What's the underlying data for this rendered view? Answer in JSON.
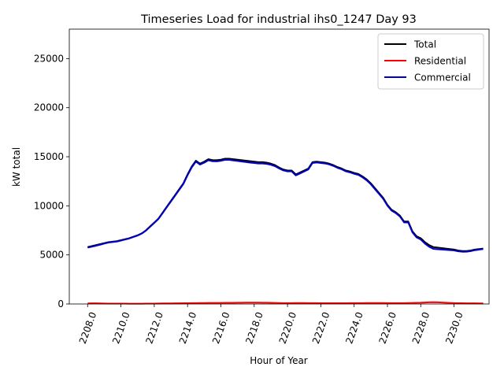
{
  "chart_data": {
    "type": "line",
    "title": "Timeseries Load for industrial ihs0_1247  Day 93",
    "xlabel": "Hour of Year",
    "ylabel": "kW total",
    "xlim": [
      2206.9,
      2232.1
    ],
    "ylim": [
      0,
      28000
    ],
    "xticks": [
      2208,
      2210,
      2212,
      2214,
      2216,
      2218,
      2220,
      2222,
      2224,
      2226,
      2228,
      2230
    ],
    "xtick_labels": [
      "2208.0",
      "2210.0",
      "2212.0",
      "2214.0",
      "2216.0",
      "2218.0",
      "2220.0",
      "2222.0",
      "2224.0",
      "2226.0",
      "2228.0",
      "2230.0"
    ],
    "yticks": [
      0,
      5000,
      10000,
      15000,
      20000,
      25000
    ],
    "ytick_labels": [
      "0",
      "5000",
      "10000",
      "15000",
      "20000",
      "25000"
    ],
    "grid": false,
    "legend_position": "top-right",
    "x": [
      2208.0,
      2208.25,
      2208.5,
      2208.75,
      2209.0,
      2209.25,
      2209.5,
      2209.75,
      2210.0,
      2210.25,
      2210.5,
      2210.75,
      2211.0,
      2211.25,
      2211.5,
      2211.75,
      2212.0,
      2212.25,
      2212.5,
      2212.75,
      2213.0,
      2213.25,
      2213.5,
      2213.75,
      2214.0,
      2214.25,
      2214.5,
      2214.75,
      2215.0,
      2215.25,
      2215.5,
      2215.75,
      2216.0,
      2216.25,
      2216.5,
      2216.75,
      2217.0,
      2217.25,
      2217.5,
      2217.75,
      2218.0,
      2218.25,
      2218.5,
      2218.75,
      2219.0,
      2219.25,
      2219.5,
      2219.75,
      2220.0,
      2220.25,
      2220.5,
      2220.75,
      2221.0,
      2221.25,
      2221.5,
      2221.75,
      2222.0,
      2222.25,
      2222.5,
      2222.75,
      2223.0,
      2223.25,
      2223.5,
      2223.75,
      2224.0,
      2224.25,
      2224.5,
      2224.75,
      2225.0,
      2225.25,
      2225.5,
      2225.75,
      2226.0,
      2226.25,
      2226.5,
      2226.75,
      2227.0,
      2227.25,
      2227.5,
      2227.75,
      2228.0,
      2228.25,
      2228.5,
      2228.75,
      2229.0,
      2229.25,
      2229.5,
      2229.75,
      2230.0,
      2230.25,
      2230.5,
      2230.75,
      2231.0,
      2231.25,
      2231.5,
      2231.75
    ],
    "series": [
      {
        "name": "Total",
        "color": "#000000",
        "values": [
          5800,
          5900,
          6000,
          6100,
          6200,
          6300,
          6350,
          6400,
          6500,
          6600,
          6700,
          6850,
          7000,
          7200,
          7500,
          7900,
          8300,
          8700,
          9300,
          9900,
          10500,
          11100,
          11700,
          12300,
          13200,
          14000,
          14600,
          14300,
          14500,
          14750,
          14650,
          14650,
          14700,
          14800,
          14800,
          14750,
          14700,
          14650,
          14600,
          14550,
          14500,
          14450,
          14450,
          14400,
          14300,
          14150,
          13900,
          13700,
          13600,
          13600,
          13200,
          13400,
          13600,
          13800,
          14450,
          14500,
          14450,
          14400,
          14300,
          14150,
          13950,
          13800,
          13600,
          13500,
          13350,
          13250,
          13000,
          12700,
          12300,
          11800,
          11300,
          10800,
          10100,
          9600,
          9350,
          9000,
          8400,
          8400,
          7400,
          6900,
          6700,
          6300,
          6000,
          5800,
          5750,
          5700,
          5650,
          5600,
          5550,
          5450,
          5400,
          5400,
          5450,
          5550,
          5600,
          5650
        ]
      },
      {
        "name": "Residential",
        "color": "#ff0000",
        "values": [
          60,
          70,
          70,
          60,
          50,
          45,
          40,
          40,
          40,
          35,
          30,
          30,
          30,
          30,
          35,
          40,
          45,
          50,
          55,
          60,
          65,
          70,
          75,
          80,
          85,
          90,
          95,
          100,
          105,
          110,
          110,
          115,
          115,
          120,
          120,
          125,
          130,
          135,
          140,
          145,
          140,
          140,
          135,
          130,
          120,
          110,
          100,
          95,
          90,
          95,
          100,
          105,
          100,
          95,
          90,
          90,
          85,
          85,
          80,
          80,
          80,
          80,
          85,
          90,
          90,
          95,
          95,
          100,
          100,
          100,
          100,
          100,
          95,
          95,
          90,
          90,
          95,
          100,
          110,
          120,
          130,
          150,
          170,
          180,
          170,
          150,
          130,
          110,
          95,
          85,
          80,
          75,
          70,
          70,
          65,
          60
        ]
      },
      {
        "name": "Commercial",
        "color": "#0000cc",
        "values": [
          5740,
          5830,
          5930,
          6040,
          6150,
          6255,
          6310,
          6360,
          6460,
          6565,
          6670,
          6820,
          6970,
          7170,
          7465,
          7860,
          8255,
          8650,
          9245,
          9840,
          10435,
          11030,
          11625,
          12220,
          13115,
          13910,
          14505,
          14200,
          14395,
          14640,
          14540,
          14535,
          14585,
          14680,
          14680,
          14625,
          14570,
          14515,
          14460,
          14405,
          14360,
          14310,
          14315,
          14270,
          14180,
          14040,
          13800,
          13605,
          13510,
          13505,
          13100,
          13295,
          13500,
          13705,
          14360,
          14410,
          14365,
          14315,
          14220,
          14070,
          13870,
          13720,
          13515,
          13410,
          13260,
          13155,
          12905,
          12600,
          12200,
          11700,
          11200,
          10700,
          10005,
          9505,
          9260,
          8910,
          8305,
          8300,
          7290,
          6780,
          6570,
          6150,
          5830,
          5620,
          5580,
          5550,
          5520,
          5490,
          5455,
          5365,
          5320,
          5325,
          5380,
          5480,
          5535,
          5590
        ]
      }
    ]
  }
}
